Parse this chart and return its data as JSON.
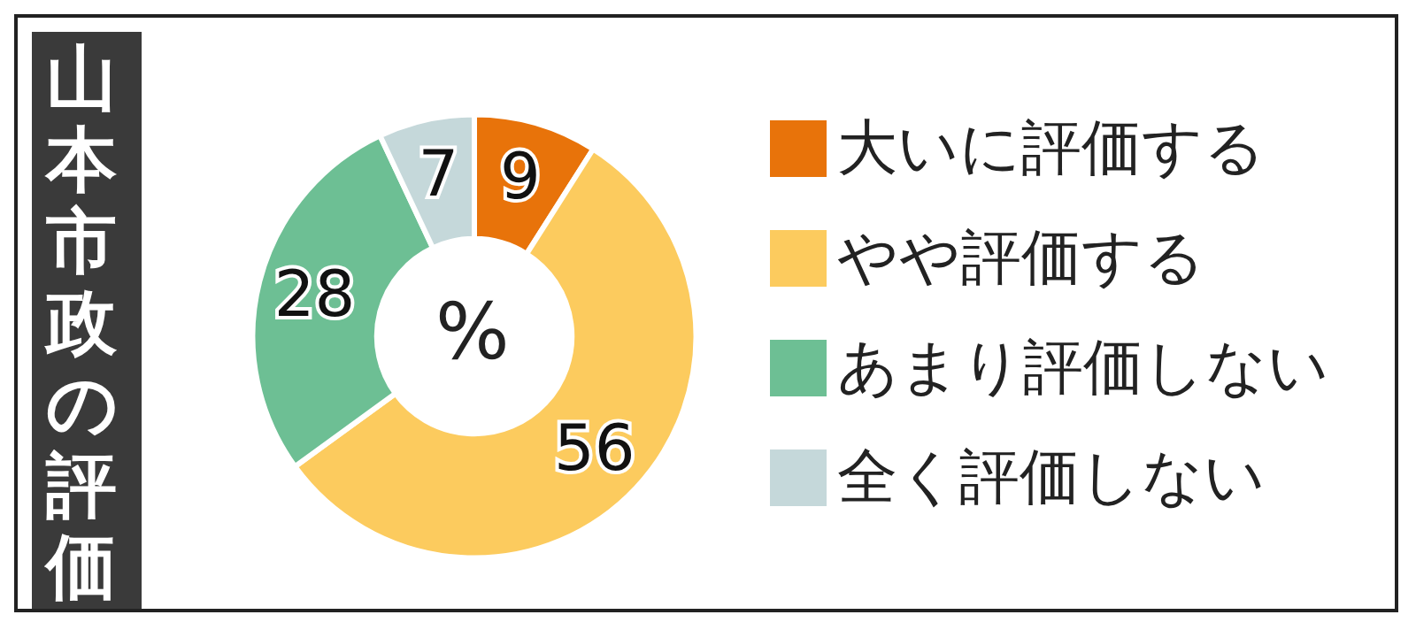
{
  "chart_data": {
    "type": "donut",
    "title": "山本市政の評価",
    "categories": [
      "大いに評価する",
      "やや評価する",
      "あまり評価しない",
      "全く評価しない"
    ],
    "values": [
      9,
      56,
      28,
      7
    ],
    "colors": [
      "#e8730a",
      "#fccb5e",
      "#6dbf94",
      "#c5d8da"
    ],
    "data_labels": true,
    "annotations": [
      "%"
    ],
    "legend": "right"
  }
}
